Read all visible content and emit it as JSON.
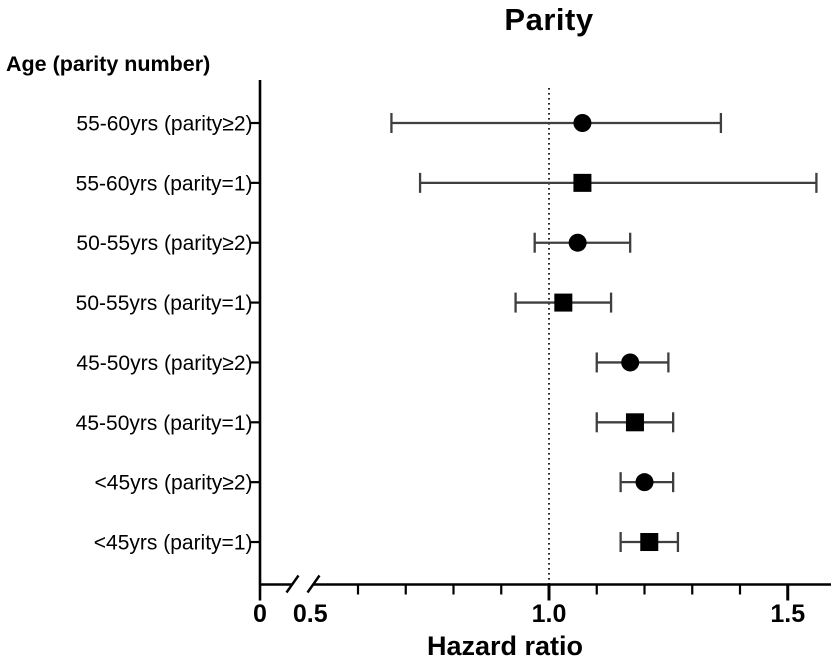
{
  "chart_data": {
    "type": "scatter",
    "subtype": "forest-plot",
    "title": "Parity",
    "xlabel": "Hazard ratio",
    "ylabel_header": "Age (parity number)",
    "x_axis": {
      "labeled_ticks": [
        {
          "value": 0,
          "label": "0"
        },
        {
          "value": 0.5,
          "label": "0.5"
        },
        {
          "value": 1.0,
          "label": "1.0"
        },
        {
          "value": 1.5,
          "label": "1.5"
        }
      ],
      "minor_ticks": [
        0.6,
        0.7,
        0.8,
        0.9,
        1.1,
        1.2,
        1.3,
        1.4
      ],
      "major_ticks": [
        1.0,
        1.5
      ],
      "axis_break_between": [
        0,
        0.55
      ],
      "range_shown": [
        0.5,
        1.6
      ]
    },
    "reference_line_x": 1.0,
    "grid": false,
    "legend": "none",
    "rows_top_to_bottom": [
      {
        "label": "55-60yrs (parity≥2)",
        "marker": "circle",
        "hr": 1.07,
        "ci_low": 0.67,
        "ci_high": 1.36
      },
      {
        "label": "55-60yrs (parity=1)",
        "marker": "square",
        "hr": 1.07,
        "ci_low": 0.73,
        "ci_high": 1.56
      },
      {
        "label": "50-55yrs (parity≥2)",
        "marker": "circle",
        "hr": 1.06,
        "ci_low": 0.97,
        "ci_high": 1.17
      },
      {
        "label": "50-55yrs (parity=1)",
        "marker": "square",
        "hr": 1.03,
        "ci_low": 0.93,
        "ci_high": 1.13
      },
      {
        "label": "45-50yrs (parity≥2)",
        "marker": "circle",
        "hr": 1.17,
        "ci_low": 1.1,
        "ci_high": 1.25
      },
      {
        "label": "45-50yrs (parity=1)",
        "marker": "square",
        "hr": 1.18,
        "ci_low": 1.1,
        "ci_high": 1.26
      },
      {
        "label": "<45yrs (parity≥2)",
        "marker": "circle",
        "hr": 1.2,
        "ci_low": 1.15,
        "ci_high": 1.26
      },
      {
        "label": "<45yrs (parity=1)",
        "marker": "square",
        "hr": 1.21,
        "ci_low": 1.15,
        "ci_high": 1.27
      }
    ],
    "colors": {
      "marker": "#000000",
      "error_bar": "#3f3f3f",
      "axis": "#000000",
      "reference_line": "#000000",
      "background": "#ffffff"
    }
  }
}
